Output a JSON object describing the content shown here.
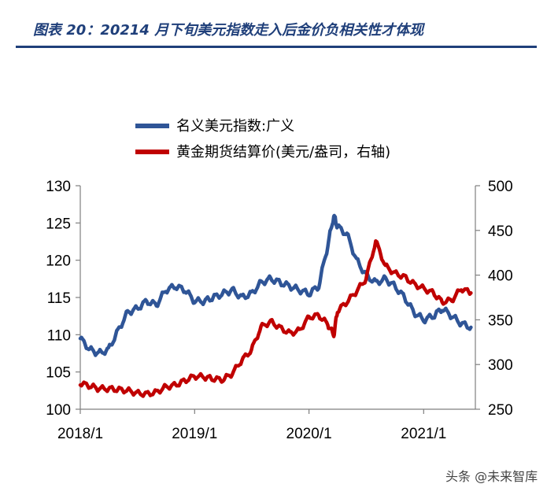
{
  "header": {
    "title": "图表 20：20214 月下旬美元指数走入后金价负相关性才体现"
  },
  "watermark": "头条 @未来智库",
  "colors": {
    "usd": "#2f5597",
    "gold": "#c00000",
    "title": "#1f3f7a"
  },
  "chart_data": {
    "type": "line",
    "title": "",
    "xlabel": "",
    "ylabel": "",
    "x_ticks": [
      "2018/1",
      "2019/1",
      "2020/1",
      "2021/1"
    ],
    "y_left_ticks": [
      "100",
      "105",
      "110",
      "115",
      "120",
      "125",
      "130"
    ],
    "y_right_ticks": [
      "250",
      "300",
      "350",
      "400",
      "450",
      "500"
    ],
    "ylim_left": [
      100,
      130
    ],
    "ylim_right": [
      250,
      500
    ],
    "legend_position": "top-left",
    "series": [
      {
        "name": "名义美元指数:广义",
        "axis": "left",
        "color": "#2f5597",
        "x": [
          "2018-01-01",
          "2018-02-01",
          "2018-03-01",
          "2018-04-01",
          "2018-05-01",
          "2018-06-01",
          "2018-07-01",
          "2018-08-01",
          "2018-09-01",
          "2018-10-01",
          "2018-11-01",
          "2018-12-01",
          "2019-01-01",
          "2019-02-01",
          "2019-03-01",
          "2019-04-01",
          "2019-05-01",
          "2019-06-01",
          "2019-07-01",
          "2019-08-01",
          "2019-09-01",
          "2019-10-01",
          "2019-11-01",
          "2019-12-01",
          "2020-01-01",
          "2020-02-01",
          "2020-03-01",
          "2020-03-20",
          "2020-04-01",
          "2020-05-01",
          "2020-06-01",
          "2020-07-01",
          "2020-08-01",
          "2020-09-01",
          "2020-10-01",
          "2020-11-01",
          "2020-12-01",
          "2021-01-01",
          "2021-02-01",
          "2021-03-01",
          "2021-04-01",
          "2021-05-01",
          "2021-06-01"
        ],
        "values": [
          109.5,
          108.0,
          107.5,
          108.0,
          110.5,
          113.0,
          113.5,
          114.5,
          114.0,
          116.0,
          116.5,
          116.0,
          114.5,
          114.5,
          115.0,
          115.5,
          116.0,
          115.0,
          115.5,
          117.0,
          117.5,
          117.0,
          116.5,
          116.0,
          115.5,
          116.5,
          122.0,
          126.0,
          124.5,
          123.5,
          120.0,
          118.0,
          117.0,
          117.5,
          116.5,
          115.0,
          113.0,
          112.0,
          112.5,
          113.5,
          112.5,
          111.5,
          111.0
        ]
      },
      {
        "name": "黄金期货结算价(美元/盎司，右轴)",
        "axis": "right",
        "color": "#c00000",
        "x": [
          "2018-01-01",
          "2018-02-01",
          "2018-03-01",
          "2018-04-01",
          "2018-05-01",
          "2018-06-01",
          "2018-07-01",
          "2018-08-01",
          "2018-09-01",
          "2018-10-01",
          "2018-11-01",
          "2018-12-01",
          "2019-01-01",
          "2019-02-01",
          "2019-03-01",
          "2019-04-01",
          "2019-05-01",
          "2019-06-01",
          "2019-07-01",
          "2019-08-01",
          "2019-09-01",
          "2019-10-01",
          "2019-11-01",
          "2019-12-01",
          "2020-01-01",
          "2020-02-01",
          "2020-03-01",
          "2020-03-20",
          "2020-04-01",
          "2020-05-01",
          "2020-06-01",
          "2020-07-01",
          "2020-08-01",
          "2020-09-01",
          "2020-10-01",
          "2020-11-01",
          "2020-12-01",
          "2021-01-01",
          "2021-02-01",
          "2021-03-01",
          "2021-04-01",
          "2021-05-01",
          "2021-06-01"
        ],
        "values": [
          279,
          276,
          273,
          273,
          272,
          271,
          268,
          267,
          269,
          275,
          277,
          282,
          287,
          286,
          284,
          283,
          290,
          305,
          316,
          342,
          348,
          341,
          335,
          338,
          353,
          355,
          345,
          333,
          360,
          370,
          382,
          396,
          438,
          410,
          402,
          398,
          390,
          385,
          380,
          370,
          372,
          385,
          380
        ]
      }
    ]
  }
}
